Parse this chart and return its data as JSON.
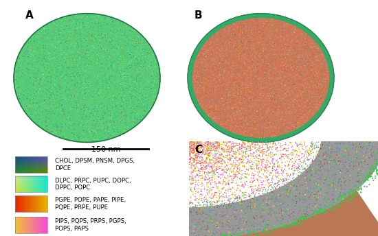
{
  "title_A": "A",
  "title_B": "B",
  "title_C": "C",
  "scale_bar_text": "150 nm",
  "legend_items": [
    {
      "label": "CHOL, DPSM, PNSM, DPGS,\nDPCE"
    },
    {
      "label": "DLPC, PRPC, PUPC, DOPC,\nDPPC, POPC"
    },
    {
      "label": "PGPE, POPE, PAPE, PIPE,\nPQPE, PRPE, PUPE"
    },
    {
      "label": "PIPS, PQPS, PRPS, PGPS,\nPOPS, PAPS"
    }
  ]
}
